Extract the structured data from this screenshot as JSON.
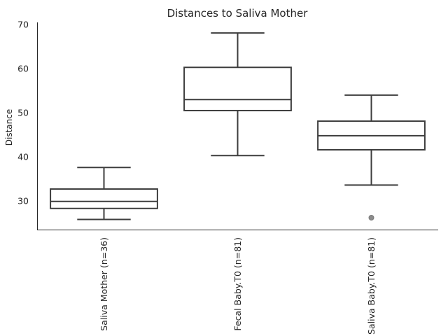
{
  "chart_data": {
    "type": "box",
    "title": "Distances to Saliva Mother",
    "xlabel": "",
    "ylabel": "Distance",
    "ylim": [
      23.5,
      70.5
    ],
    "yticks": [
      30,
      40,
      50,
      60,
      70
    ],
    "categories": [
      "Saliva Mother (n=36)",
      "Fecal Baby.T0 (n=81)",
      "Saliva Baby.T0 (n=81)"
    ],
    "boxes": [
      {
        "whisker_low": 25.8,
        "q1": 28.3,
        "median": 29.9,
        "q3": 32.7,
        "whisker_high": 37.6,
        "outliers": []
      },
      {
        "whisker_low": 40.3,
        "q1": 50.5,
        "median": 53.0,
        "q3": 60.3,
        "whisker_high": 68.1,
        "outliers": []
      },
      {
        "whisker_low": 33.6,
        "q1": 41.6,
        "median": 44.8,
        "q3": 48.1,
        "whisker_high": 54.0,
        "outliers": [
          26.2
        ]
      }
    ],
    "grid": false,
    "legend": "none"
  }
}
